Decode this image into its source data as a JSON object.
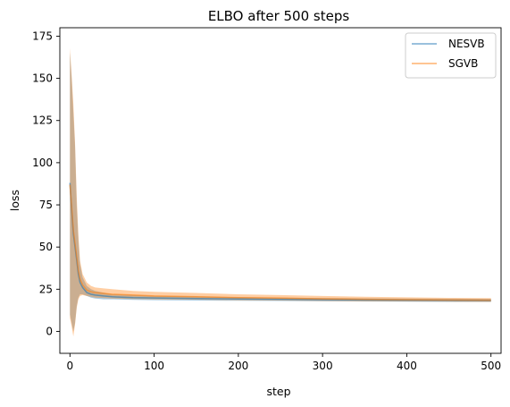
{
  "chart_data": {
    "type": "line",
    "title": "ELBO after 500 steps",
    "xlabel": "step",
    "ylabel": "loss",
    "xlim": [
      -12,
      512
    ],
    "ylim": [
      -13,
      180
    ],
    "xticks": [
      0,
      100,
      200,
      300,
      400,
      500
    ],
    "yticks": [
      0,
      25,
      50,
      75,
      100,
      125,
      150,
      175
    ],
    "grid": false,
    "legend_position": "top-right",
    "colors": {
      "NESVB": "#1f77b4",
      "SGVB": "#ff7f0e"
    },
    "series": [
      {
        "name": "NESVB",
        "x": [
          0,
          2,
          4,
          6,
          8,
          10,
          12,
          15,
          20,
          25,
          30,
          40,
          50,
          75,
          100,
          150,
          200,
          250,
          300,
          350,
          400,
          450,
          500
        ],
        "mean": [
          88,
          72,
          58,
          50,
          42,
          34,
          29,
          26,
          23,
          22,
          21.5,
          21,
          20.5,
          20,
          19.8,
          19.5,
          19.2,
          19,
          18.8,
          18.6,
          18.5,
          18.4,
          18.3
        ],
        "lower": [
          10,
          5,
          0,
          5,
          15,
          20,
          22,
          22,
          21,
          20,
          19.5,
          19,
          19,
          18.7,
          18.5,
          18.3,
          18.1,
          18,
          17.8,
          17.7,
          17.6,
          17.5,
          17.5
        ],
        "upper": [
          165,
          150,
          130,
          110,
          75,
          55,
          40,
          32,
          27,
          25,
          24,
          23,
          22,
          21.5,
          21,
          20.7,
          20.3,
          20,
          19.8,
          19.6,
          19.5,
          19.4,
          19.3
        ]
      },
      {
        "name": "SGVB",
        "x": [
          0,
          2,
          4,
          6,
          8,
          10,
          12,
          15,
          20,
          25,
          30,
          40,
          50,
          75,
          100,
          150,
          200,
          250,
          300,
          350,
          400,
          450,
          500
        ],
        "mean": [
          87,
          74,
          60,
          52,
          44,
          36,
          31,
          27.5,
          24.5,
          23.5,
          23,
          22.5,
          22,
          21.5,
          21,
          20.5,
          20,
          19.7,
          19.3,
          19,
          18.8,
          18.6,
          18.5
        ],
        "lower": [
          8,
          3,
          -3,
          4,
          14,
          19,
          21,
          21.5,
          21,
          20.5,
          20,
          19.8,
          19.5,
          19.2,
          19,
          18.8,
          18.5,
          18.3,
          18,
          17.8,
          17.7,
          17.6,
          17.5
        ],
        "upper": [
          168,
          152,
          135,
          112,
          80,
          58,
          42,
          34,
          29,
          27,
          26,
          25.5,
          25,
          24,
          23.5,
          22.8,
          22,
          21.5,
          21,
          20.5,
          20.2,
          19.9,
          19.7
        ]
      }
    ]
  }
}
